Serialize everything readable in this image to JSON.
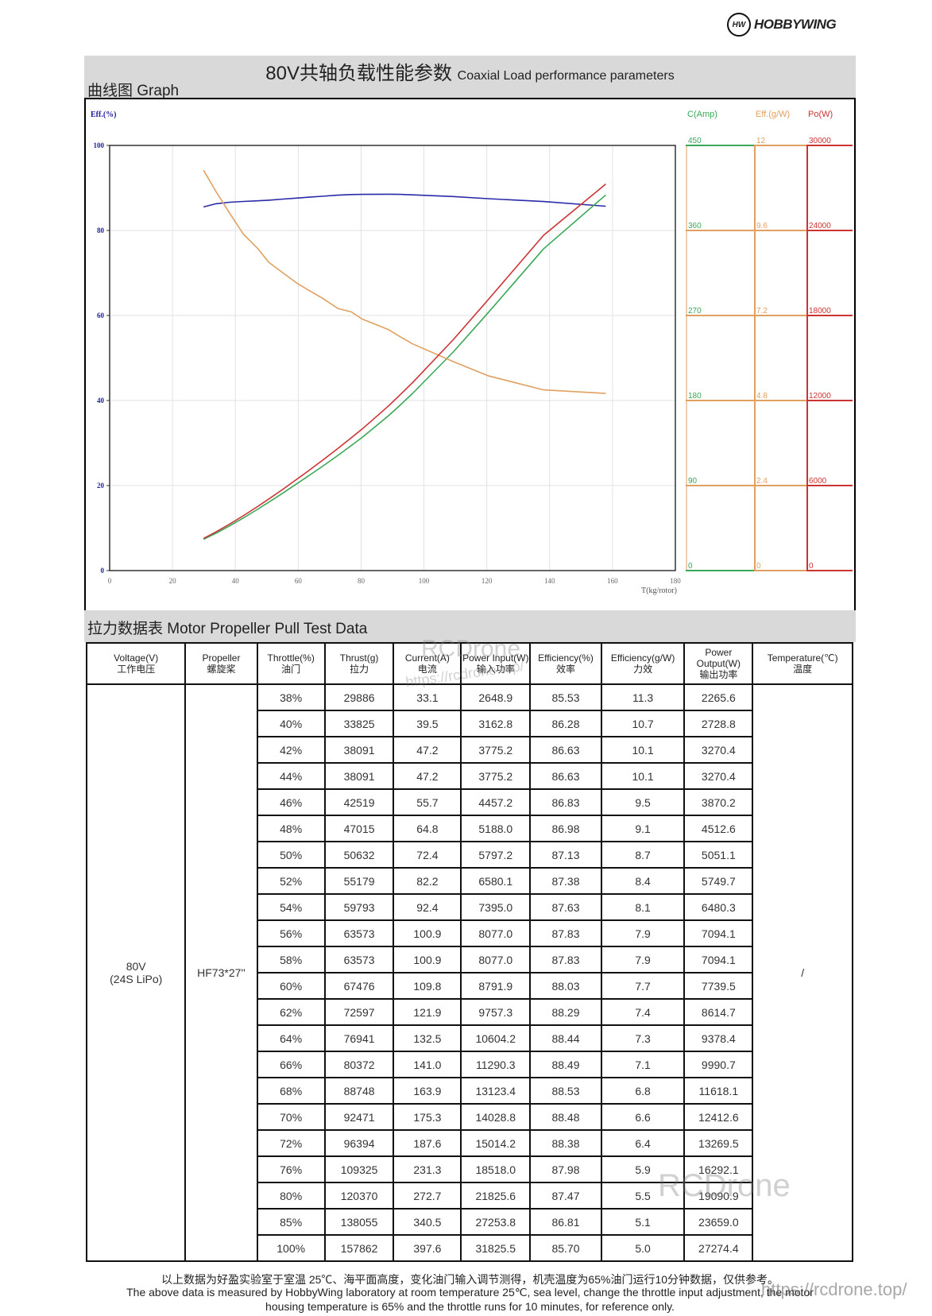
{
  "brand": {
    "logo_text": "HOBBYWING",
    "logo_mark": "HW"
  },
  "header": {
    "title_cn": "80V共轴负载性能参数",
    "title_en": "Coaxial Load performance parameters",
    "graph_label": "曲线图 Graph"
  },
  "chart_data": {
    "type": "line",
    "xlabel": "T(kg/rotor)",
    "xlim": [
      0,
      180
    ],
    "xticks": [
      "0",
      "20",
      "40",
      "60",
      "80",
      "100",
      "120",
      "140",
      "160",
      "180"
    ],
    "grid": true,
    "left_axis": {
      "label": "Eff.(%)",
      "ylim": [
        0,
        100
      ],
      "ticks": [
        "0",
        "20",
        "40",
        "60",
        "80",
        "100"
      ],
      "color": "#1f1f9e"
    },
    "right_axes": [
      {
        "label": "C(Amp)",
        "ylim": [
          0,
          450
        ],
        "ticks": [
          "0",
          "90",
          "180",
          "270",
          "360",
          "450"
        ],
        "color": "#3aa857"
      },
      {
        "label": "Eff.(g/W)",
        "ylim": [
          0,
          12
        ],
        "ticks": [
          "0",
          "2.4",
          "4.8",
          "7.2",
          "9.6",
          "12"
        ],
        "color": "#e0a060"
      },
      {
        "label": "Po(W)",
        "ylim": [
          0,
          30000
        ],
        "ticks": [
          "0",
          "6000",
          "12000",
          "18000",
          "24000",
          "30000"
        ],
        "color": "#cc3333"
      }
    ],
    "x": [
      29.886,
      33.825,
      38.091,
      38.091,
      42.519,
      47.015,
      50.632,
      55.179,
      59.793,
      63.573,
      63.573,
      67.476,
      72.597,
      76.941,
      80.372,
      88.748,
      92.471,
      96.394,
      109.325,
      120.37,
      138.055,
      157.862
    ],
    "series": [
      {
        "axis": "Eff.(%)",
        "color": "#2a2aa8",
        "values": [
          85.53,
          86.28,
          86.63,
          86.63,
          86.83,
          86.98,
          87.13,
          87.38,
          87.63,
          87.83,
          87.83,
          88.03,
          88.29,
          88.44,
          88.49,
          88.53,
          88.48,
          88.38,
          87.98,
          87.47,
          86.81,
          85.7
        ]
      },
      {
        "axis": "C(Amp)",
        "color": "#3aa857",
        "values": [
          33.1,
          39.5,
          47.2,
          47.2,
          55.7,
          64.8,
          72.4,
          82.2,
          92.4,
          100.9,
          100.9,
          109.8,
          121.9,
          132.5,
          141.0,
          163.9,
          175.3,
          187.6,
          231.3,
          272.7,
          340.5,
          397.6
        ]
      },
      {
        "axis": "Eff.(g/W)",
        "color": "#e0a060",
        "values": [
          11.3,
          10.7,
          10.1,
          10.1,
          9.5,
          9.1,
          8.7,
          8.4,
          8.1,
          7.9,
          7.9,
          7.7,
          7.4,
          7.3,
          7.1,
          6.8,
          6.6,
          6.4,
          5.9,
          5.5,
          5.1,
          5.0
        ]
      },
      {
        "axis": "Po(W)",
        "color": "#cc3333",
        "values": [
          2265.6,
          2728.8,
          3270.4,
          3270.4,
          3870.2,
          4512.6,
          5051.1,
          5749.7,
          6480.3,
          7094.1,
          7094.1,
          7739.5,
          8614.7,
          9378.4,
          9990.7,
          11618.1,
          12412.6,
          13269.5,
          16292.1,
          19090.9,
          23659.0,
          27274.4
        ]
      }
    ]
  },
  "table": {
    "title": "拉力数据表 Motor Propeller Pull Test Data",
    "headers": [
      {
        "en": "Voltage(V)",
        "cn": "工作电压"
      },
      {
        "en": "Propeller",
        "cn": "螺旋桨"
      },
      {
        "en": "Throttle(%)",
        "cn": "油门"
      },
      {
        "en": "Thrust(g)",
        "cn": "拉力"
      },
      {
        "en": "Current(A)",
        "cn": "电流"
      },
      {
        "en": "Power Input(W)",
        "cn": "输入功率"
      },
      {
        "en": "Efficiency(%)",
        "cn": "效率"
      },
      {
        "en": "Efficiency(g/W)",
        "cn": "力效"
      },
      {
        "en": "Power Output(W)",
        "cn": "输出功率"
      },
      {
        "en": "Temperature(℃)",
        "cn": "温度"
      }
    ],
    "voltage": "80V",
    "voltage_sub": "(24S LiPo)",
    "propeller": "HF73*27''",
    "temperature": "/",
    "rows": [
      [
        "38%",
        "29886",
        "33.1",
        "2648.9",
        "85.53",
        "11.3",
        "2265.6"
      ],
      [
        "40%",
        "33825",
        "39.5",
        "3162.8",
        "86.28",
        "10.7",
        "2728.8"
      ],
      [
        "42%",
        "38091",
        "47.2",
        "3775.2",
        "86.63",
        "10.1",
        "3270.4"
      ],
      [
        "44%",
        "38091",
        "47.2",
        "3775.2",
        "86.63",
        "10.1",
        "3270.4"
      ],
      [
        "46%",
        "42519",
        "55.7",
        "4457.2",
        "86.83",
        "9.5",
        "3870.2"
      ],
      [
        "48%",
        "47015",
        "64.8",
        "5188.0",
        "86.98",
        "9.1",
        "4512.6"
      ],
      [
        "50%",
        "50632",
        "72.4",
        "5797.2",
        "87.13",
        "8.7",
        "5051.1"
      ],
      [
        "52%",
        "55179",
        "82.2",
        "6580.1",
        "87.38",
        "8.4",
        "5749.7"
      ],
      [
        "54%",
        "59793",
        "92.4",
        "7395.0",
        "87.63",
        "8.1",
        "6480.3"
      ],
      [
        "56%",
        "63573",
        "100.9",
        "8077.0",
        "87.83",
        "7.9",
        "7094.1"
      ],
      [
        "58%",
        "63573",
        "100.9",
        "8077.0",
        "87.83",
        "7.9",
        "7094.1"
      ],
      [
        "60%",
        "67476",
        "109.8",
        "8791.9",
        "88.03",
        "7.7",
        "7739.5"
      ],
      [
        "62%",
        "72597",
        "121.9",
        "9757.3",
        "88.29",
        "7.4",
        "8614.7"
      ],
      [
        "64%",
        "76941",
        "132.5",
        "10604.2",
        "88.44",
        "7.3",
        "9378.4"
      ],
      [
        "66%",
        "80372",
        "141.0",
        "11290.3",
        "88.49",
        "7.1",
        "9990.7"
      ],
      [
        "68%",
        "88748",
        "163.9",
        "13123.4",
        "88.53",
        "6.8",
        "11618.1"
      ],
      [
        "70%",
        "92471",
        "175.3",
        "14028.8",
        "88.48",
        "6.6",
        "12412.6"
      ],
      [
        "72%",
        "96394",
        "187.6",
        "15014.2",
        "88.38",
        "6.4",
        "13269.5"
      ],
      [
        "76%",
        "109325",
        "231.3",
        "18518.0",
        "87.98",
        "5.9",
        "16292.1"
      ],
      [
        "80%",
        "120370",
        "272.7",
        "21825.6",
        "87.47",
        "5.5",
        "19090.9"
      ],
      [
        "85%",
        "138055",
        "340.5",
        "27253.8",
        "86.81",
        "5.1",
        "23659.0"
      ],
      [
        "100%",
        "157862",
        "397.6",
        "31825.5",
        "85.70",
        "5.0",
        "27274.4"
      ]
    ]
  },
  "footer": {
    "cn": "以上数据为好盈实验室于室温 25℃、海平面高度，变化油门输入调节测得，机壳温度为65%油门运行10分钟数据，仅供参考。",
    "en1": "The above data is measured by HobbyWing laboratory at room temperature 25℃, sea level, change the throttle input adjustment, the motor",
    "en2": "housing temperature is 65% and the throttle runs for 10 minutes, for reference only."
  },
  "watermark": {
    "name": "RCDrone",
    "url": "https://rcdrone.top/"
  }
}
